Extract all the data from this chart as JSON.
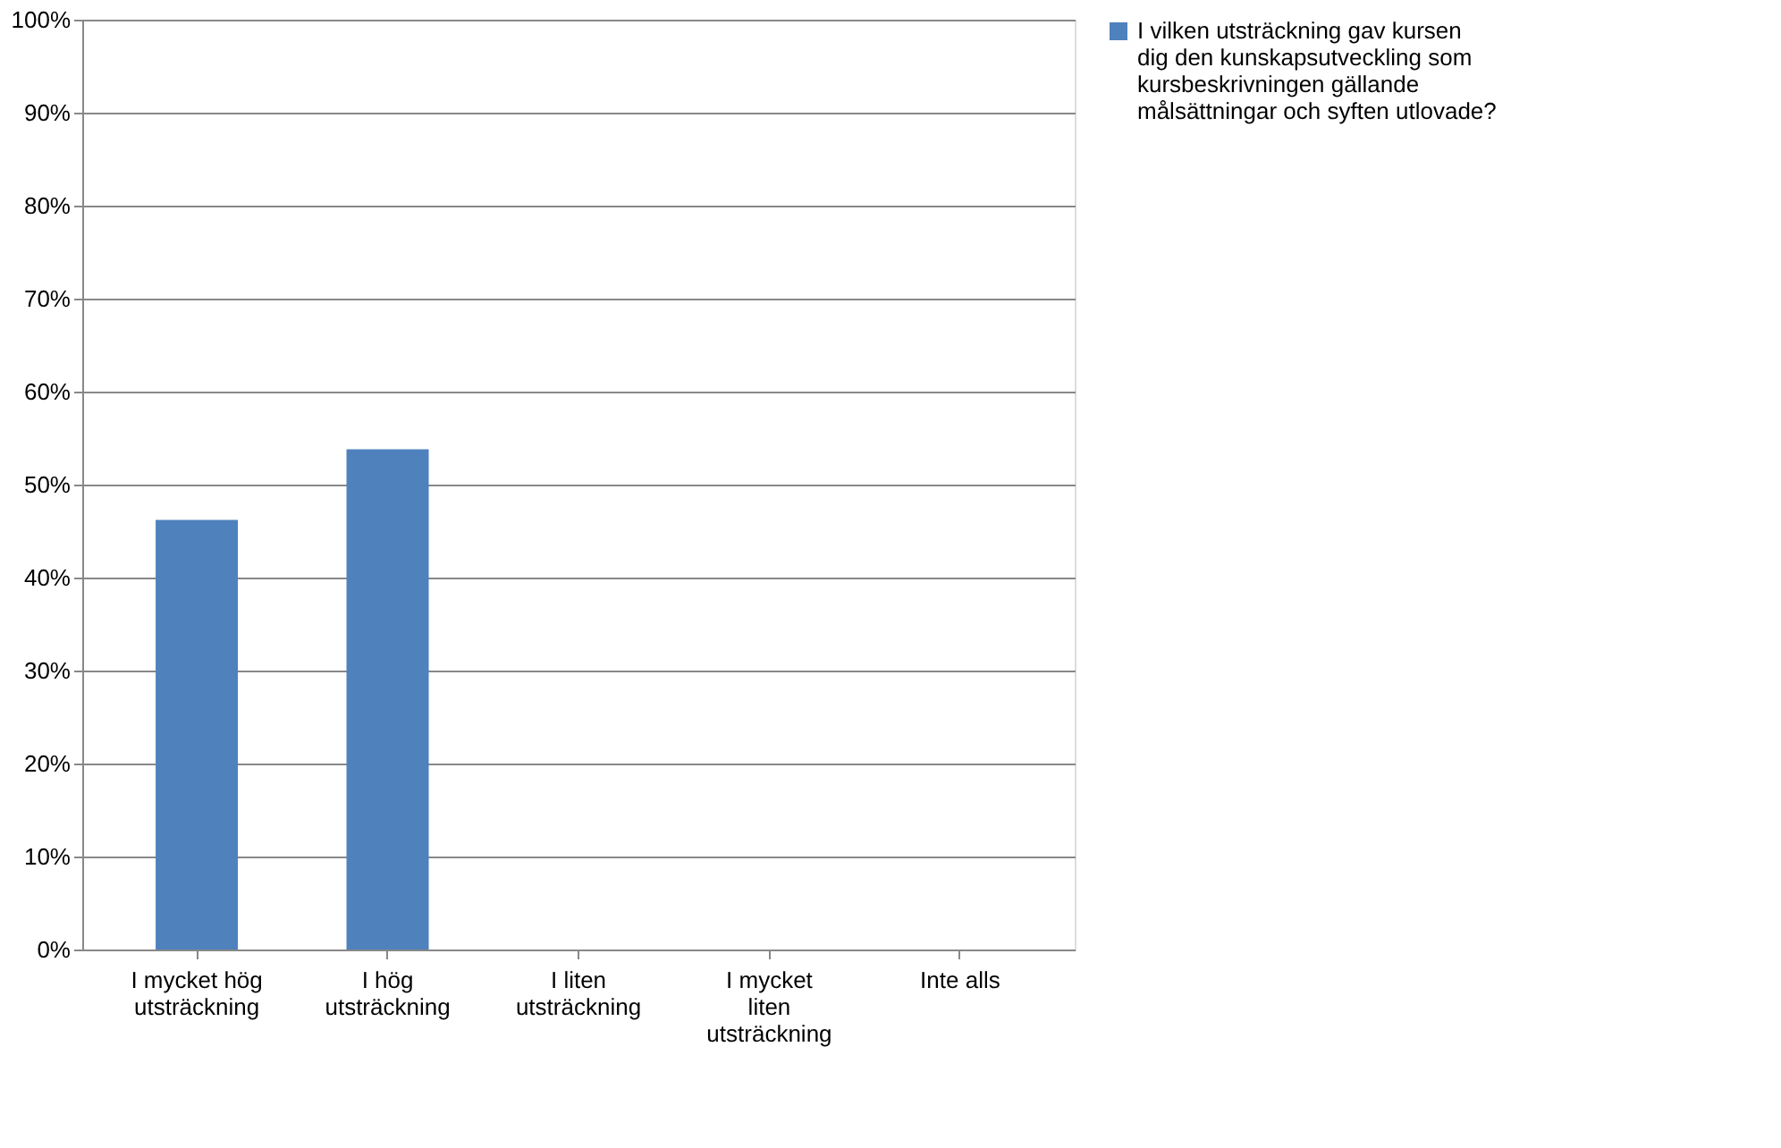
{
  "chart_data": {
    "type": "bar",
    "categories": [
      "I mycket hög utsträckning",
      "I hög utsträckning",
      "I liten utsträckning",
      "I mycket liten utsträckning",
      "Inte alls"
    ],
    "series": [
      {
        "name": "I vilken utsträckning gav kursen dig den kunskapsutveckling som kursbeskrivningen gällande målsättningar och syften utlovade?",
        "color": "#4f81bd",
        "values": [
          46.2,
          53.8,
          0,
          0,
          0
        ]
      }
    ],
    "ylim": [
      0,
      100
    ],
    "yticks": [
      {
        "value": 0,
        "label": "0%"
      },
      {
        "value": 10,
        "label": "10%"
      },
      {
        "value": 20,
        "label": "20%"
      },
      {
        "value": 30,
        "label": "30%"
      },
      {
        "value": 40,
        "label": "40%"
      },
      {
        "value": 50,
        "label": "50%"
      },
      {
        "value": 60,
        "label": "60%"
      },
      {
        "value": 70,
        "label": "70%"
      },
      {
        "value": 80,
        "label": "80%"
      },
      {
        "value": 90,
        "label": "90%"
      },
      {
        "value": 100,
        "label": "100%"
      }
    ],
    "grid": "y",
    "legend": "right"
  }
}
